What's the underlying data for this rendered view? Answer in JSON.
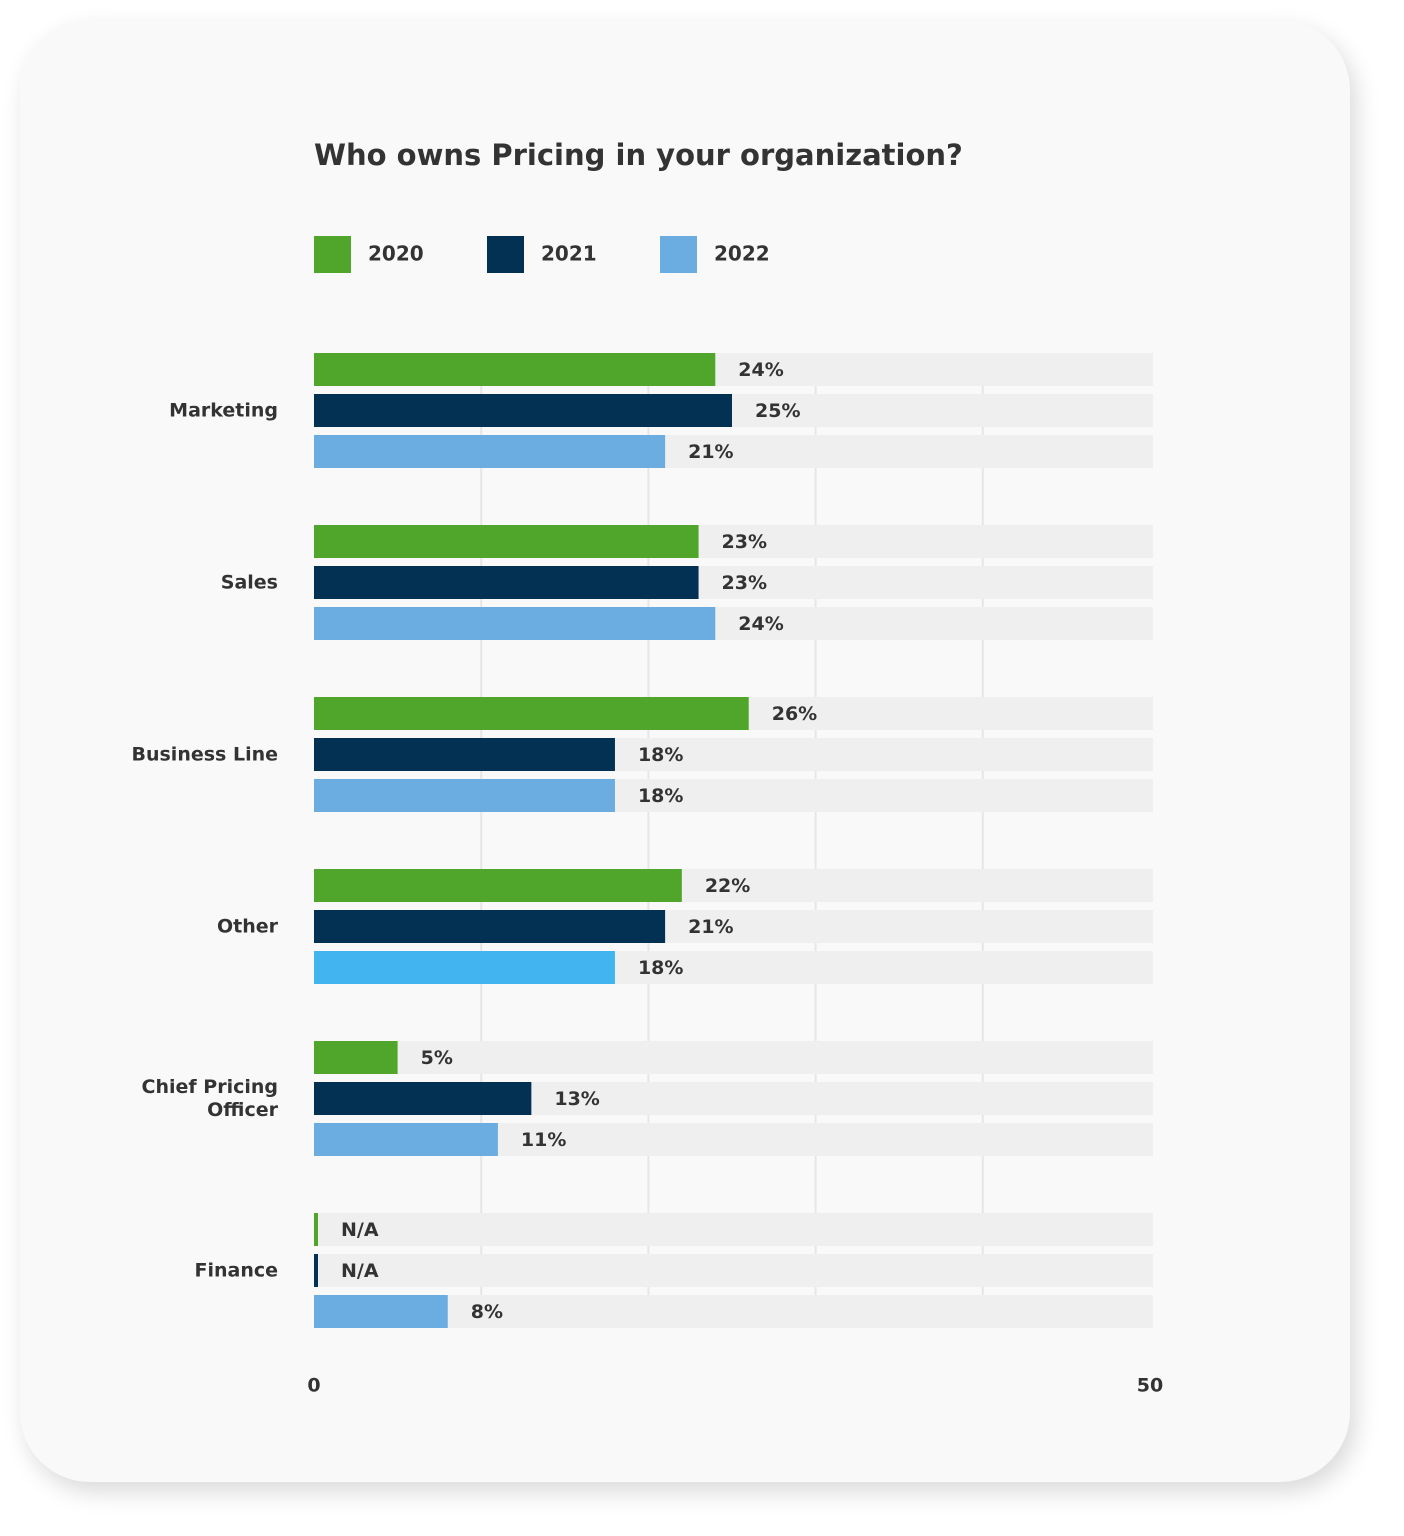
{
  "chart_data": {
    "type": "bar",
    "orientation": "horizontal",
    "title": "Who owns Pricing in your organization?",
    "categories": [
      "Marketing",
      "Sales",
      "Business Line",
      "Other",
      "Chief Pricing Officer",
      "Finance"
    ],
    "series": [
      {
        "name": "2020",
        "color": "#4fa62a",
        "values": [
          24,
          23,
          26,
          22,
          5,
          null
        ],
        "value_labels": [
          "24%",
          "23%",
          "26%",
          "22%",
          "5%",
          "N/A"
        ]
      },
      {
        "name": "2021",
        "color": "#033153",
        "values": [
          25,
          23,
          18,
          21,
          13,
          null
        ],
        "value_labels": [
          "25%",
          "23%",
          "18%",
          "21%",
          "13%",
          "N/A"
        ]
      },
      {
        "name": "2022",
        "color": "#6badE0",
        "colors": [
          "#6bade0",
          "#6bade0",
          "#6bade0",
          "#42b4f0",
          "#6bade0",
          "#6bade0"
        ],
        "values": [
          21,
          24,
          18,
          18,
          11,
          8
        ],
        "value_labels": [
          "21%",
          "24%",
          "18%",
          "18%",
          "11%",
          "8%"
        ]
      }
    ],
    "xlim": [
      0,
      50
    ],
    "xticks": [
      0,
      50
    ],
    "grid_lines": [
      10,
      20,
      30,
      40
    ],
    "grid": true,
    "legend": "top-left"
  }
}
